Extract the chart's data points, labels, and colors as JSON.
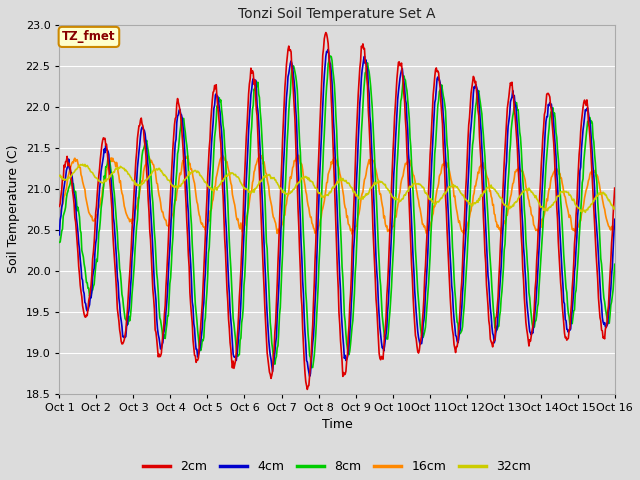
{
  "title": "Tonzi Soil Temperature Set A",
  "xlabel": "Time",
  "ylabel": "Soil Temperature (C)",
  "ylim": [
    18.5,
    23.0
  ],
  "annotation_text": "TZ_fmet",
  "annotation_bg": "#ffffcc",
  "annotation_border": "#cc8800",
  "annotation_text_color": "#880000",
  "plot_bg_color": "#dcdcdc",
  "grid_color": "#ffffff",
  "legend_labels": [
    "2cm",
    "4cm",
    "8cm",
    "16cm",
    "32cm"
  ],
  "legend_colors": [
    "#dd0000",
    "#0000cc",
    "#00cc00",
    "#ff8800",
    "#cccc00"
  ],
  "n_days": 15,
  "n_points_per_day": 48,
  "line_width": 1.2,
  "xtick_labels": [
    "Oct 1",
    "Oct 2",
    "Oct 3",
    "Oct 4",
    "Oct 5",
    "Oct 6",
    "Oct 7",
    "Oct 8",
    "Oct 9",
    "Oct 10",
    "Oct 11",
    "Oct 12",
    "Oct 13",
    "Oct 14",
    "Oct 15",
    "Oct 16"
  ]
}
